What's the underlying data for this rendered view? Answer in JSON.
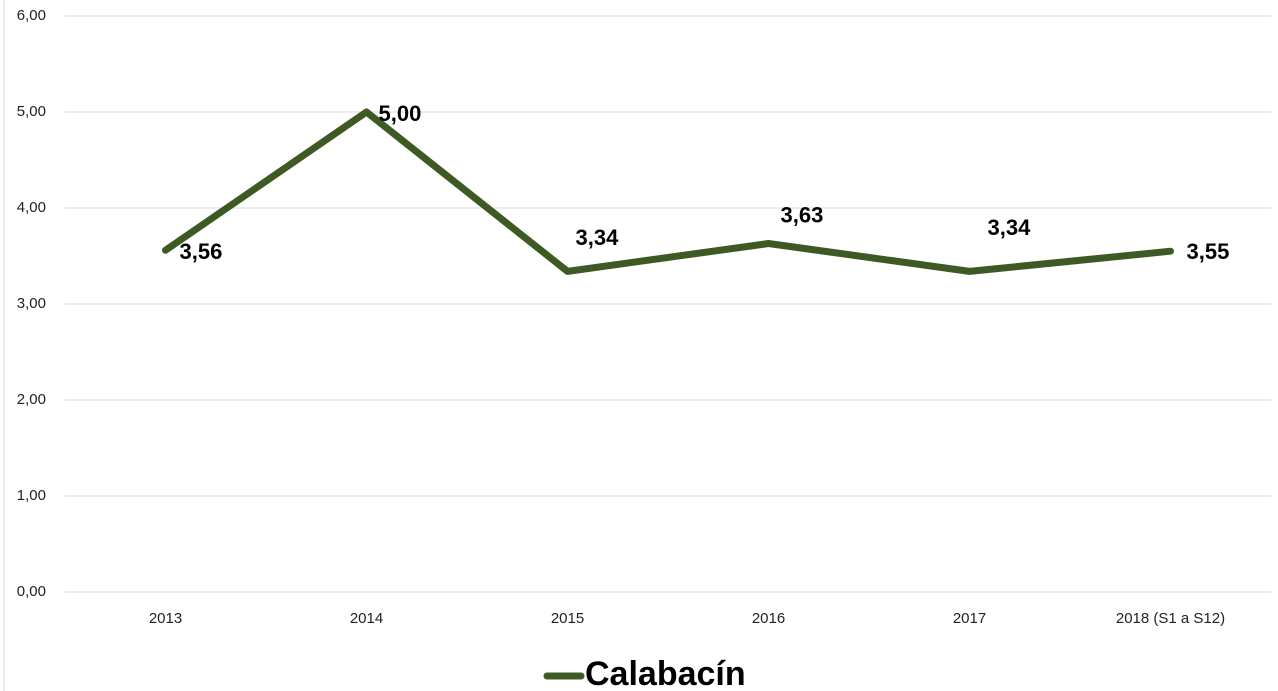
{
  "chart_data": {
    "type": "line",
    "categories": [
      "2013",
      "2014",
      "2015",
      "2016",
      "2017",
      "2018 (S1 a S12)"
    ],
    "series": [
      {
        "name": "Calabacín",
        "color": "#3d5a24",
        "values": [
          3.56,
          5.0,
          3.34,
          3.63,
          3.34,
          3.55
        ],
        "value_labels": [
          "3,56",
          "5,00",
          "3,34",
          "3,63",
          "3,34",
          "3,55"
        ]
      }
    ],
    "ylim": [
      0,
      6
    ],
    "yticks": [
      {
        "value": 0,
        "label": "0,00"
      },
      {
        "value": 1,
        "label": "1,00"
      },
      {
        "value": 2,
        "label": "2,00"
      },
      {
        "value": 3,
        "label": "3,00"
      },
      {
        "value": 4,
        "label": "4,00"
      },
      {
        "value": 5,
        "label": "5,00"
      },
      {
        "value": 6,
        "label": "6,00"
      }
    ],
    "grid": true,
    "legend": "bottom"
  }
}
